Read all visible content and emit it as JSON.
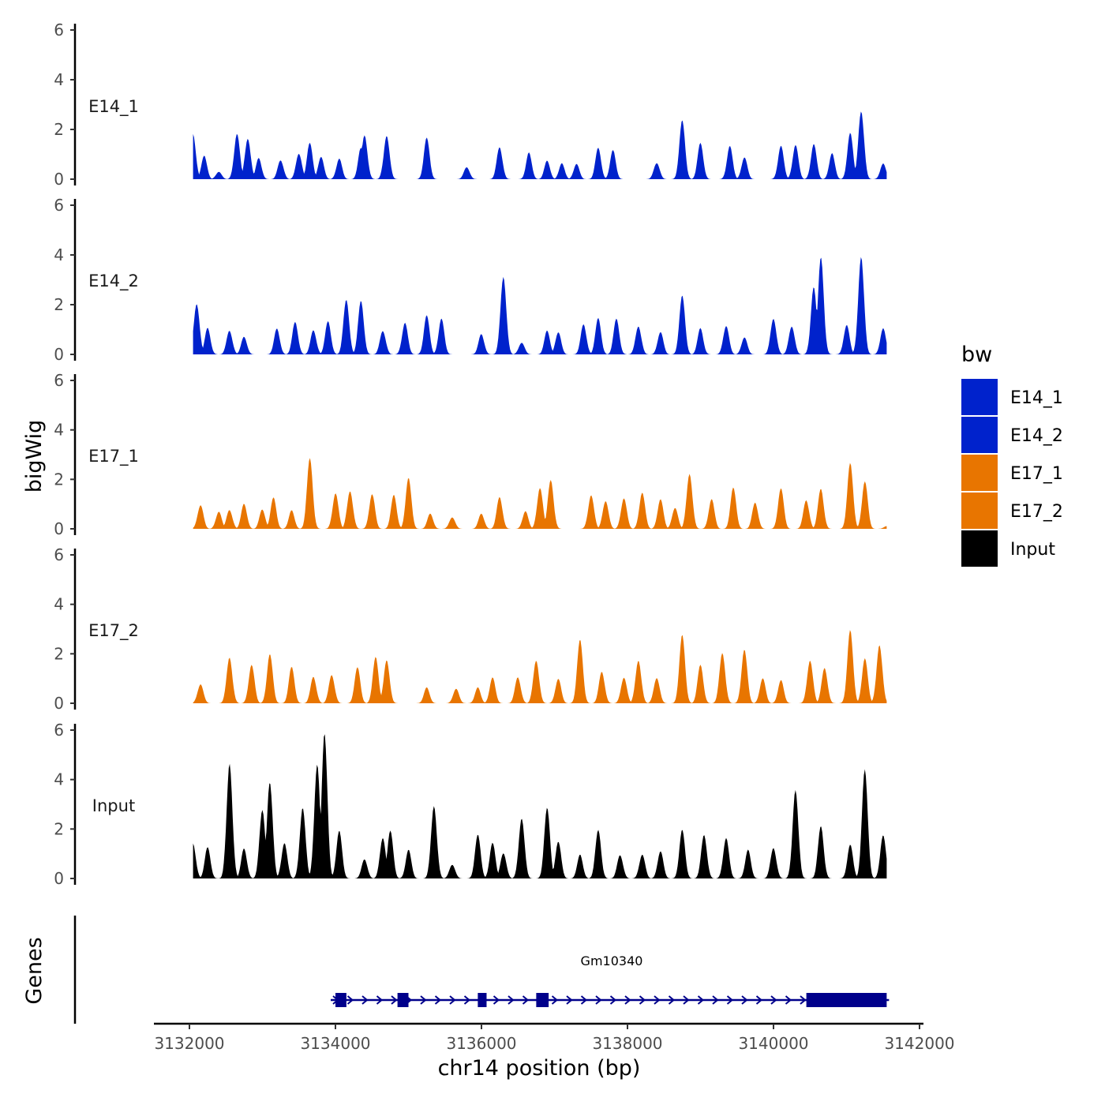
{
  "chart_data": {
    "type": "area",
    "xlabel": "chr14 position (bp)",
    "ylabel": "bigWig",
    "genes_label": "Genes",
    "xlim": [
      3131800,
      3142000
    ],
    "x_ticks": [
      3132000,
      3134000,
      3136000,
      3138000,
      3140000,
      3142000
    ],
    "x_tick_labels": [
      "3132000",
      "3134000",
      "3136000",
      "3138000",
      "3140000",
      "3142000"
    ],
    "ylim": [
      0,
      6
    ],
    "y_ticks": [
      0,
      2,
      4,
      6
    ],
    "y_tick_labels": [
      "0",
      "2",
      "4",
      "6"
    ],
    "legend": {
      "title": "bw",
      "entries": [
        {
          "name": "E14_1",
          "color": "#0022cc"
        },
        {
          "name": "E14_2",
          "color": "#0022cc"
        },
        {
          "name": "E17_1",
          "color": "#e87500"
        },
        {
          "name": "E17_2",
          "color": "#e87500"
        },
        {
          "name": "Input",
          "color": "#000000"
        }
      ]
    },
    "x_range": [
      3132050,
      3141550
    ],
    "series": [
      {
        "name": "E14_1",
        "color": "#0022cc",
        "peaks": [
          [
            3132050,
            1.8
          ],
          [
            3132200,
            0.9
          ],
          [
            3132400,
            0.3
          ],
          [
            3132650,
            1.8
          ],
          [
            3132800,
            1.7
          ],
          [
            3132950,
            0.8
          ],
          [
            3133250,
            0.8
          ],
          [
            3133500,
            1.1
          ],
          [
            3133650,
            1.4
          ],
          [
            3133800,
            0.9
          ],
          [
            3134050,
            0.8
          ],
          [
            3134350,
            1.2
          ],
          [
            3134400,
            1.8
          ],
          [
            3134700,
            1.8
          ],
          [
            3135250,
            1.6
          ],
          [
            3135800,
            0.5
          ],
          [
            3136250,
            1.3
          ],
          [
            3136650,
            1.0
          ],
          [
            3136900,
            0.7
          ],
          [
            3137100,
            0.6
          ],
          [
            3137300,
            0.6
          ],
          [
            3137600,
            1.2
          ],
          [
            3137800,
            1.1
          ],
          [
            3138400,
            0.7
          ],
          [
            3138750,
            2.3
          ],
          [
            3139000,
            1.4
          ],
          [
            3139400,
            1.3
          ],
          [
            3139600,
            0.9
          ],
          [
            3140100,
            1.3
          ],
          [
            3140300,
            1.4
          ],
          [
            3140550,
            1.4
          ],
          [
            3140800,
            1.0
          ],
          [
            3141050,
            1.8
          ],
          [
            3141200,
            2.8
          ],
          [
            3141500,
            0.6
          ]
        ]
      },
      {
        "name": "E14_2",
        "color": "#0022cc",
        "peaks": [
          [
            3132100,
            2.1
          ],
          [
            3132250,
            1.0
          ],
          [
            3132550,
            1.0
          ],
          [
            3132750,
            0.7
          ],
          [
            3133200,
            1.0
          ],
          [
            3133450,
            1.3
          ],
          [
            3133700,
            1.0
          ],
          [
            3133900,
            1.3
          ],
          [
            3134150,
            2.2
          ],
          [
            3134350,
            2.1
          ],
          [
            3134650,
            1.0
          ],
          [
            3134950,
            1.3
          ],
          [
            3135250,
            1.5
          ],
          [
            3135450,
            1.4
          ],
          [
            3136000,
            0.8
          ],
          [
            3136300,
            3.2
          ],
          [
            3136550,
            0.5
          ],
          [
            3136900,
            0.9
          ],
          [
            3137050,
            0.9
          ],
          [
            3137400,
            1.2
          ],
          [
            3137600,
            1.4
          ],
          [
            3137850,
            1.4
          ],
          [
            3138150,
            1.2
          ],
          [
            3138450,
            0.9
          ],
          [
            3138750,
            2.3
          ],
          [
            3139000,
            1.0
          ],
          [
            3139350,
            1.2
          ],
          [
            3139600,
            0.7
          ],
          [
            3140000,
            1.5
          ],
          [
            3140250,
            1.2
          ],
          [
            3140550,
            2.7
          ],
          [
            3140650,
            3.9
          ],
          [
            3141000,
            1.2
          ],
          [
            3141200,
            4.0
          ],
          [
            3141500,
            1.0
          ]
        ]
      },
      {
        "name": "E17_1",
        "color": "#e87500",
        "peaks": [
          [
            3132150,
            1.0
          ],
          [
            3132400,
            0.7
          ],
          [
            3132550,
            0.8
          ],
          [
            3132750,
            1.0
          ],
          [
            3133000,
            0.8
          ],
          [
            3133150,
            1.2
          ],
          [
            3133400,
            0.7
          ],
          [
            3133650,
            2.8
          ],
          [
            3134000,
            1.5
          ],
          [
            3134200,
            1.6
          ],
          [
            3134500,
            1.4
          ],
          [
            3134800,
            1.3
          ],
          [
            3135000,
            2.0
          ],
          [
            3135300,
            0.6
          ],
          [
            3135600,
            0.5
          ],
          [
            3136000,
            0.6
          ],
          [
            3136250,
            1.3
          ],
          [
            3136600,
            0.7
          ],
          [
            3136800,
            1.7
          ],
          [
            3136950,
            2.0
          ],
          [
            3137500,
            1.4
          ],
          [
            3137700,
            1.2
          ],
          [
            3137950,
            1.3
          ],
          [
            3138200,
            1.5
          ],
          [
            3138450,
            1.2
          ],
          [
            3138650,
            0.9
          ],
          [
            3138850,
            2.3
          ],
          [
            3139150,
            1.2
          ],
          [
            3139450,
            1.6
          ],
          [
            3139750,
            1.1
          ],
          [
            3140100,
            1.6
          ],
          [
            3140450,
            1.2
          ],
          [
            3140650,
            1.6
          ],
          [
            3141050,
            2.6
          ],
          [
            3141250,
            1.9
          ],
          [
            3141550,
            0.1
          ]
        ]
      },
      {
        "name": "E17_2",
        "color": "#e87500",
        "peaks": [
          [
            3132150,
            0.8
          ],
          [
            3132550,
            1.9
          ],
          [
            3132850,
            1.6
          ],
          [
            3133100,
            2.0
          ],
          [
            3133400,
            1.4
          ],
          [
            3133700,
            1.1
          ],
          [
            3133950,
            1.2
          ],
          [
            3134300,
            1.4
          ],
          [
            3134550,
            1.8
          ],
          [
            3134700,
            1.8
          ],
          [
            3135250,
            0.6
          ],
          [
            3135650,
            0.6
          ],
          [
            3135950,
            0.6
          ],
          [
            3136150,
            1.0
          ],
          [
            3136500,
            1.1
          ],
          [
            3136750,
            1.8
          ],
          [
            3137050,
            1.0
          ],
          [
            3137350,
            2.5
          ],
          [
            3137650,
            1.3
          ],
          [
            3137950,
            1.1
          ],
          [
            3138150,
            1.8
          ],
          [
            3138400,
            1.1
          ],
          [
            3138750,
            2.7
          ],
          [
            3139000,
            1.5
          ],
          [
            3139300,
            2.1
          ],
          [
            3139600,
            2.2
          ],
          [
            3139850,
            1.0
          ],
          [
            3140100,
            0.9
          ],
          [
            3140500,
            1.8
          ],
          [
            3140700,
            1.5
          ],
          [
            3141050,
            2.9
          ],
          [
            3141250,
            1.8
          ],
          [
            3141450,
            2.4
          ]
        ]
      },
      {
        "name": "Input",
        "color": "#000000",
        "peaks": [
          [
            3132050,
            1.4
          ],
          [
            3132250,
            1.2
          ],
          [
            3132550,
            4.7
          ],
          [
            3132750,
            1.2
          ],
          [
            3133000,
            2.8
          ],
          [
            3133100,
            3.9
          ],
          [
            3133300,
            1.5
          ],
          [
            3133550,
            2.9
          ],
          [
            3133750,
            4.7
          ],
          [
            3133850,
            5.8
          ],
          [
            3134050,
            1.9
          ],
          [
            3134400,
            0.8
          ],
          [
            3134650,
            1.7
          ],
          [
            3134750,
            1.9
          ],
          [
            3135000,
            1.1
          ],
          [
            3135350,
            3.0
          ],
          [
            3135600,
            0.6
          ],
          [
            3135950,
            1.7
          ],
          [
            3136150,
            1.4
          ],
          [
            3136300,
            1.1
          ],
          [
            3136550,
            2.5
          ],
          [
            3136900,
            2.8
          ],
          [
            3137050,
            1.5
          ],
          [
            3137350,
            0.9
          ],
          [
            3137600,
            1.9
          ],
          [
            3137900,
            1.0
          ],
          [
            3138200,
            1.0
          ],
          [
            3138450,
            1.1
          ],
          [
            3138750,
            1.9
          ],
          [
            3139050,
            1.8
          ],
          [
            3139350,
            1.7
          ],
          [
            3139650,
            1.1
          ],
          [
            3140000,
            1.3
          ],
          [
            3140300,
            3.6
          ],
          [
            3140650,
            2.1
          ],
          [
            3141050,
            1.3
          ],
          [
            3141250,
            4.4
          ],
          [
            3141500,
            1.7
          ]
        ]
      }
    ],
    "gene": {
      "name": "Gm10340",
      "strand": "+",
      "start": 3134000,
      "end": 3141550,
      "exons": [
        [
          3134000,
          3134150
        ],
        [
          3134850,
          3135000
        ],
        [
          3135950,
          3136070
        ],
        [
          3136750,
          3136920
        ],
        [
          3140450,
          3141550
        ]
      ]
    }
  }
}
